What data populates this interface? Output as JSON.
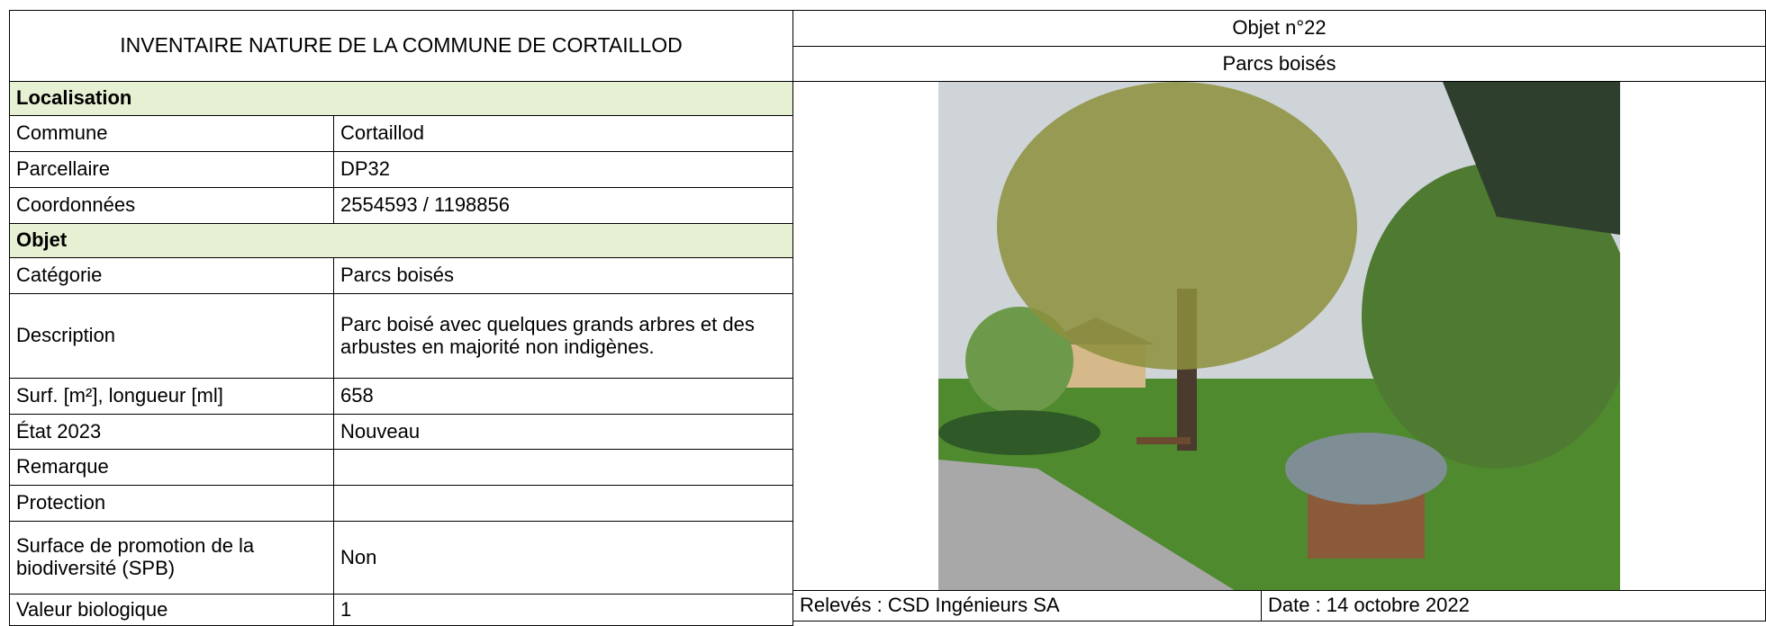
{
  "header": {
    "title": "INVENTAIRE NATURE DE LA COMMUNE DE CORTAILLOD",
    "object_number": "Objet n°22",
    "object_name": "Parcs boisés"
  },
  "localisation": {
    "heading": "Localisation",
    "rows": [
      [
        "Commune",
        "Cortaillod"
      ],
      [
        "Parcellaire",
        "DP32"
      ],
      [
        "Coordonnées",
        "2554593 / 1198856"
      ]
    ]
  },
  "objet": {
    "heading": "Objet",
    "rows": [
      [
        "Catégorie",
        "Parcs boisés"
      ],
      [
        "Description",
        "Parc boisé avec quelques grands arbres et des arbustes en majorité non indigènes."
      ],
      [
        "Surf. [m²], longueur [ml]",
        "658"
      ],
      [
        "État 2023",
        "Nouveau"
      ],
      [
        "Remarque"
      ],
      [
        "Protection"
      ],
      [
        "Surface de promotion de la biodiversité (SPB)",
        "Non"
      ],
      [
        "Valeur biologique",
        "1"
      ]
    ]
  },
  "footer": {
    "releves": "Relevés : CSD Ingénieurs SA",
    "date": "Date : 14 octobre 2022"
  }
}
